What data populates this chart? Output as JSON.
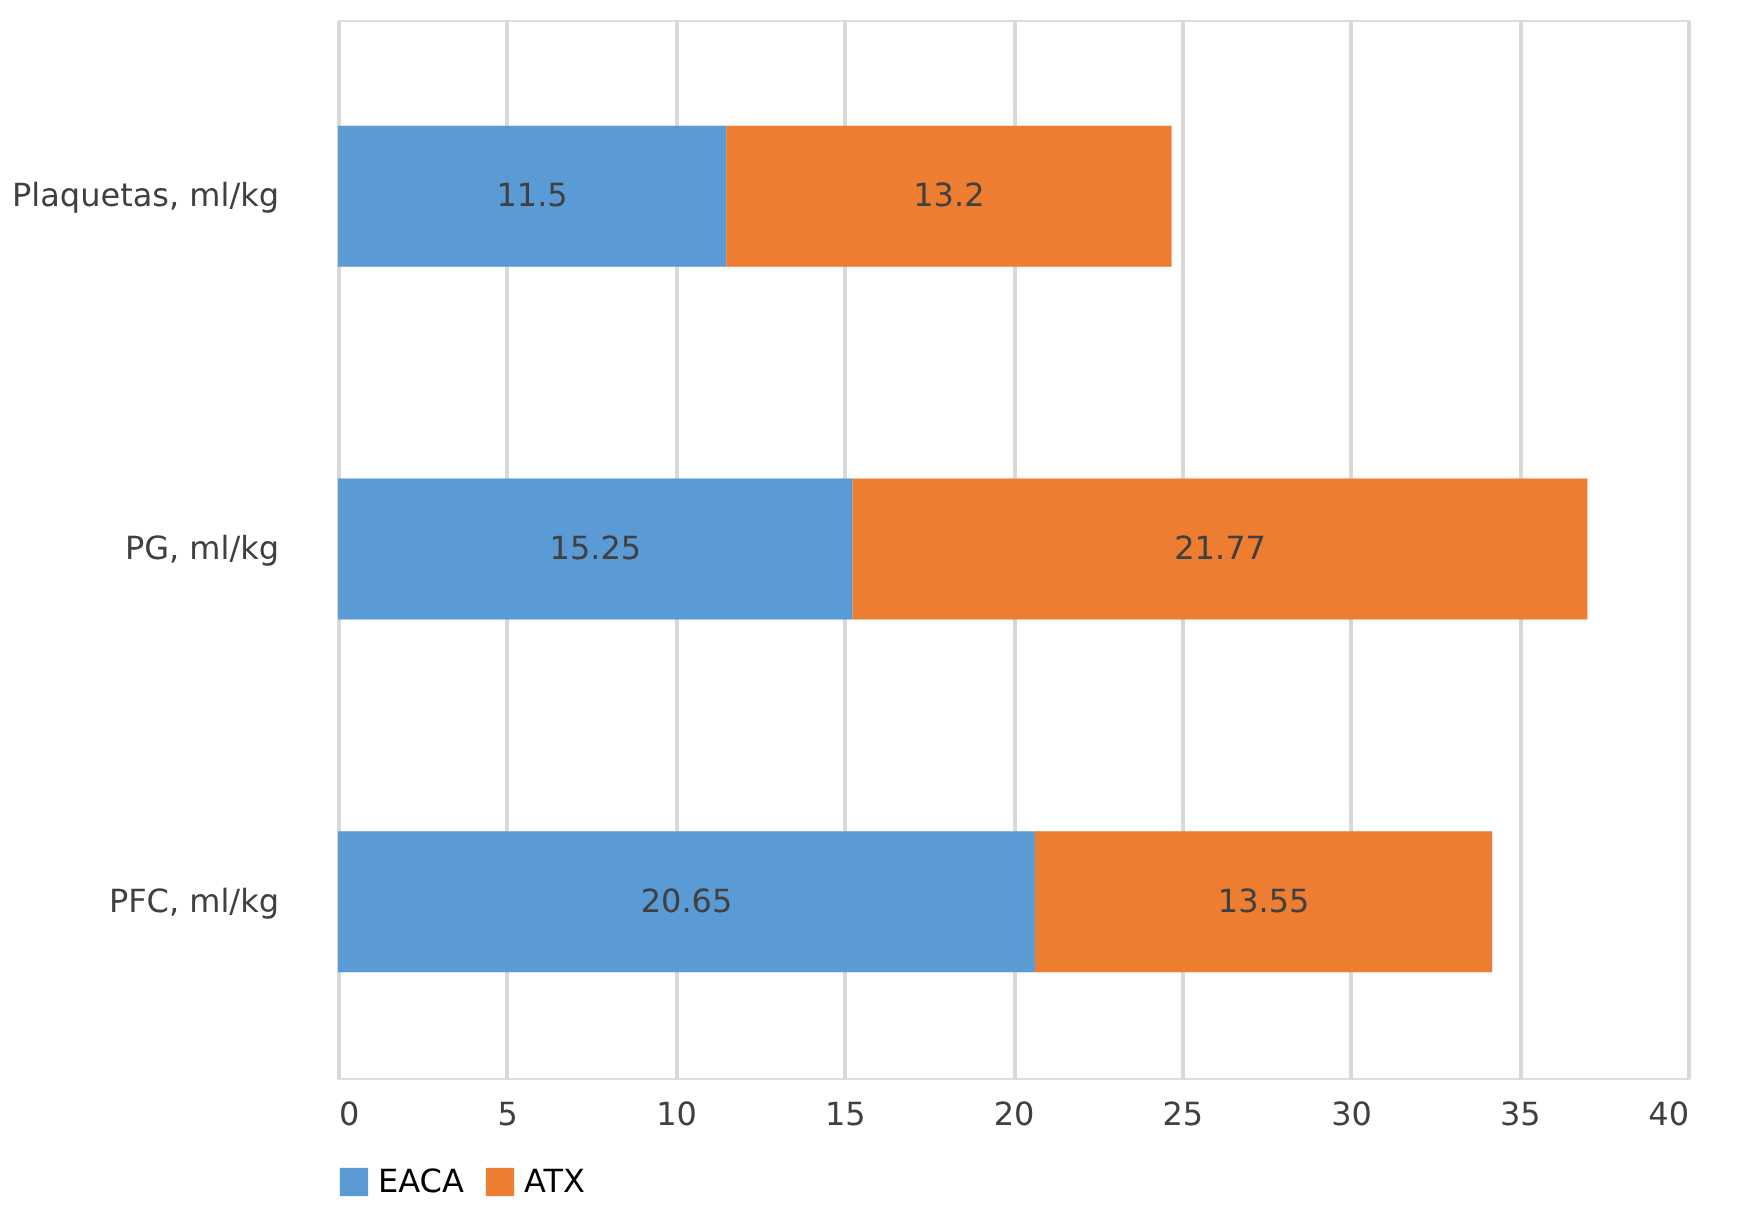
{
  "chart_data": {
    "type": "bar",
    "orientation": "horizontal",
    "stacked": true,
    "categories": [
      "Plaquetas, ml/kg",
      "PG, ml/kg",
      "PFC, ml/kg"
    ],
    "series": [
      {
        "name": "EACA",
        "color": "#5b9bd5",
        "values": [
          11.5,
          15.25,
          20.65
        ]
      },
      {
        "name": "ATX",
        "color": "#ed7d31",
        "values": [
          13.2,
          21.77,
          13.55
        ]
      }
    ],
    "xlim": [
      0,
      40
    ],
    "xticks": [
      0,
      5,
      10,
      15,
      20,
      25,
      30,
      35,
      40
    ],
    "grid": "x",
    "legend": "bottom",
    "data_labels": true
  }
}
